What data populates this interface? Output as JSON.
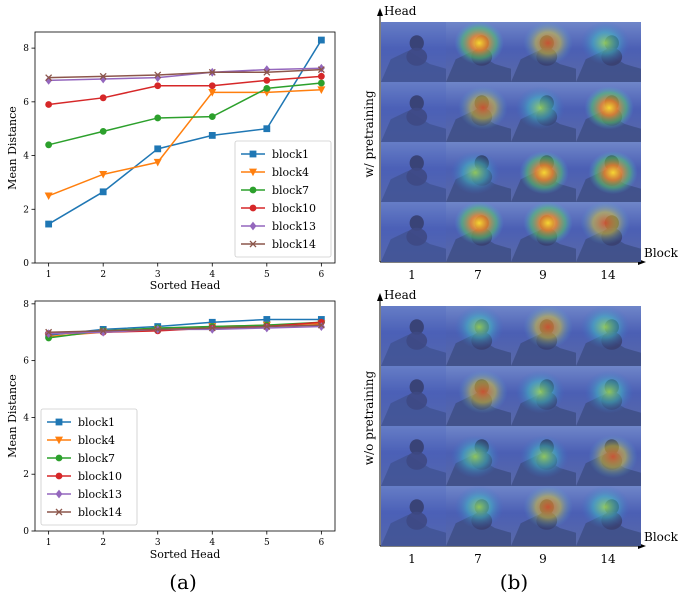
{
  "panel_labels": [
    "(a)",
    "(b)"
  ],
  "chart_data": [
    {
      "type": "line",
      "xlabel": "Sorted Head",
      "ylabel": "Mean Distance",
      "x": [
        1,
        2,
        3,
        4,
        5,
        6
      ],
      "ylim": [
        0,
        8.6
      ],
      "yticks": [
        0,
        2,
        4,
        6,
        8
      ],
      "grid": false,
      "legend": "lower-right",
      "series": [
        {
          "name": "block1",
          "color": "#1f77b4",
          "marker": "square",
          "values": [
            1.45,
            2.65,
            4.25,
            4.75,
            5.0,
            8.3
          ]
        },
        {
          "name": "block4",
          "color": "#ff7f0e",
          "marker": "triangle",
          "values": [
            2.5,
            3.3,
            3.75,
            6.35,
            6.35,
            6.45
          ]
        },
        {
          "name": "block7",
          "color": "#2ca02c",
          "marker": "circle",
          "values": [
            4.4,
            4.9,
            5.4,
            5.45,
            6.5,
            6.7
          ]
        },
        {
          "name": "block10",
          "color": "#d62728",
          "marker": "circle",
          "values": [
            5.9,
            6.15,
            6.6,
            6.6,
            6.8,
            6.95
          ]
        },
        {
          "name": "block13",
          "color": "#9467bd",
          "marker": "diamond",
          "values": [
            6.8,
            6.85,
            6.9,
            7.1,
            7.2,
            7.25
          ]
        },
        {
          "name": "block14",
          "color": "#8c564b",
          "marker": "x",
          "values": [
            6.9,
            6.95,
            7.0,
            7.1,
            7.1,
            7.2
          ]
        }
      ]
    },
    {
      "type": "line",
      "xlabel": "Sorted Head",
      "ylabel": "Mean Distance",
      "x": [
        1,
        2,
        3,
        4,
        5,
        6
      ],
      "ylim": [
        0,
        8.1
      ],
      "yticks": [
        0,
        2,
        4,
        6,
        8
      ],
      "grid": false,
      "legend": "lower-left",
      "series": [
        {
          "name": "block1",
          "color": "#1f77b4",
          "marker": "square",
          "values": [
            6.9,
            7.1,
            7.2,
            7.35,
            7.45,
            7.45
          ]
        },
        {
          "name": "block4",
          "color": "#ff7f0e",
          "marker": "triangle",
          "values": [
            6.85,
            7.0,
            7.1,
            7.2,
            7.25,
            7.3
          ]
        },
        {
          "name": "block7",
          "color": "#2ca02c",
          "marker": "circle",
          "values": [
            6.8,
            7.05,
            7.15,
            7.2,
            7.25,
            7.35
          ]
        },
        {
          "name": "block10",
          "color": "#d62728",
          "marker": "circle",
          "values": [
            6.95,
            7.0,
            7.05,
            7.15,
            7.2,
            7.35
          ]
        },
        {
          "name": "block13",
          "color": "#9467bd",
          "marker": "diamond",
          "values": [
            6.95,
            7.0,
            7.1,
            7.1,
            7.15,
            7.2
          ]
        },
        {
          "name": "block14",
          "color": "#8c564b",
          "marker": "x",
          "values": [
            7.0,
            7.05,
            7.1,
            7.15,
            7.2,
            7.25
          ]
        }
      ]
    }
  ],
  "attention_grids": [
    {
      "ylabel": "w/ pretraining",
      "y_axis_title": "Head",
      "x_axis_title": "Block",
      "columns": [
        "1",
        "7",
        "9",
        "14"
      ],
      "rows": 4
    },
    {
      "ylabel": "w/o pretraining",
      "y_axis_title": "Head",
      "x_axis_title": "Block",
      "columns": [
        "1",
        "7",
        "9",
        "14"
      ],
      "rows": 4
    }
  ]
}
